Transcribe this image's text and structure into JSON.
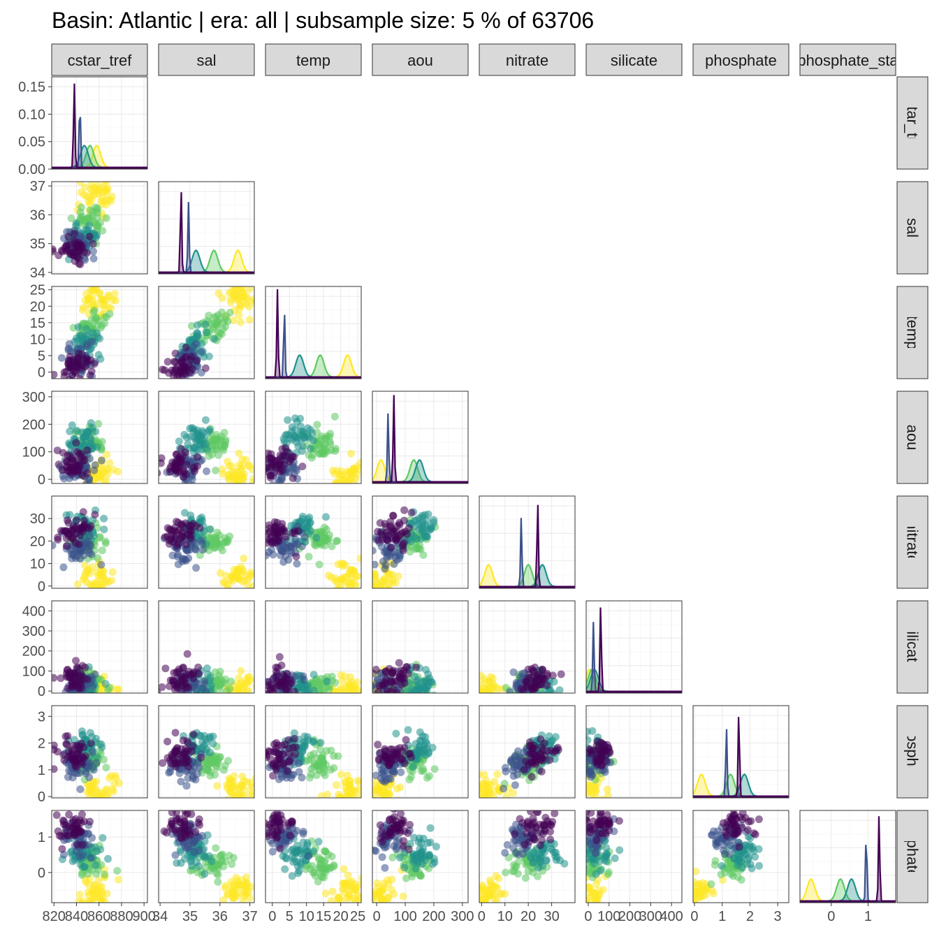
{
  "title": "Basin: Atlantic | era: all | subsample size: 5 % of 63706",
  "colors": {
    "palette": [
      "#440154",
      "#3b528b",
      "#21918c",
      "#5ec962",
      "#fde725"
    ],
    "strip_bg": "#d9d9d9",
    "grid": "#ebebeb"
  },
  "chart_data": {
    "type": "scatter",
    "layout": "pairs-matrix (lower triangle scatter, diagonal density)",
    "variables": [
      {
        "name": "cstar_tref",
        "strip_label": "cstar_tref",
        "range": [
          818,
          903
        ],
        "ticks": [
          820,
          840,
          860,
          880,
          900
        ],
        "tick_labels": [
          "820",
          "840",
          "860",
          "880",
          "900"
        ]
      },
      {
        "name": "sal",
        "strip_label": "sal",
        "range": [
          33.95,
          37.15
        ],
        "ticks": [
          34,
          35,
          36,
          37
        ],
        "tick_labels": [
          "34",
          "35",
          "36",
          "37"
        ]
      },
      {
        "name": "temp",
        "strip_label": "temp",
        "range": [
          -2,
          26
        ],
        "ticks": [
          0,
          5,
          10,
          15,
          20,
          25
        ],
        "tick_labels": [
          "0",
          "5",
          "10",
          "15",
          "20",
          "25"
        ]
      },
      {
        "name": "aou",
        "strip_label": "aou",
        "range": [
          -15,
          320
        ],
        "ticks": [
          0,
          100,
          200,
          300
        ],
        "tick_labels": [
          "0",
          "100",
          "200",
          "300"
        ]
      },
      {
        "name": "nitrate",
        "strip_label": "nitrate",
        "range": [
          -1,
          40
        ],
        "ticks": [
          0,
          10,
          20,
          30
        ],
        "tick_labels": [
          "0",
          "10",
          "20",
          "30"
        ]
      },
      {
        "name": "silicate",
        "strip_label": "silicate",
        "range": [
          -10,
          450
        ],
        "ticks": [
          0,
          100,
          200,
          300,
          400
        ],
        "tick_labels": [
          "0",
          "100",
          "200",
          "300",
          "400"
        ]
      },
      {
        "name": "phosphate",
        "strip_label": "phosphate",
        "range": [
          -0.05,
          3.4
        ],
        "ticks": [
          0,
          1,
          2,
          3
        ],
        "tick_labels": [
          "0",
          "1",
          "2",
          "3"
        ]
      },
      {
        "name": "phosphate_star",
        "strip_label": "phosphate_sta",
        "range": [
          -0.85,
          1.75
        ],
        "ticks": [
          0,
          1
        ],
        "tick_labels": [
          "0",
          "1"
        ]
      }
    ],
    "diagonal_density_ymax_axis": {
      "ticks": [
        0.0,
        0.05,
        0.1,
        0.15
      ],
      "tick_labels": [
        "0.00",
        "0.05",
        "0.10",
        "0.15"
      ],
      "ylim": [
        0,
        0.168
      ]
    },
    "groups": [
      {
        "color": "#fde725",
        "cstar_tref": 858,
        "sal": 36.6,
        "temp": 22,
        "aou": 15,
        "nitrate": 3,
        "silicate": 6,
        "phosphate": 0.25,
        "phosphate_star": -0.55
      },
      {
        "color": "#5ec962",
        "cstar_tref": 852,
        "sal": 35.8,
        "temp": 14,
        "aou": 130,
        "nitrate": 20,
        "silicate": 18,
        "phosphate": 1.3,
        "phosphate_star": 0.25
      },
      {
        "color": "#21918c",
        "cstar_tref": 847,
        "sal": 35.2,
        "temp": 8,
        "aou": 150,
        "nitrate": 26,
        "silicate": 30,
        "phosphate": 1.8,
        "phosphate_star": 0.55
      },
      {
        "color": "#3b528b",
        "cstar_tref": 843,
        "sal": 34.95,
        "temp": 3.5,
        "aou": 40,
        "nitrate": 17,
        "silicate": 25,
        "phosphate": 1.15,
        "phosphate_star": 0.95
      },
      {
        "color": "#440154",
        "cstar_tref": 838,
        "sal": 34.7,
        "temp": 1.5,
        "aou": 60,
        "nitrate": 24,
        "silicate": 60,
        "phosphate": 1.6,
        "phosphate_star": 1.3
      }
    ]
  }
}
